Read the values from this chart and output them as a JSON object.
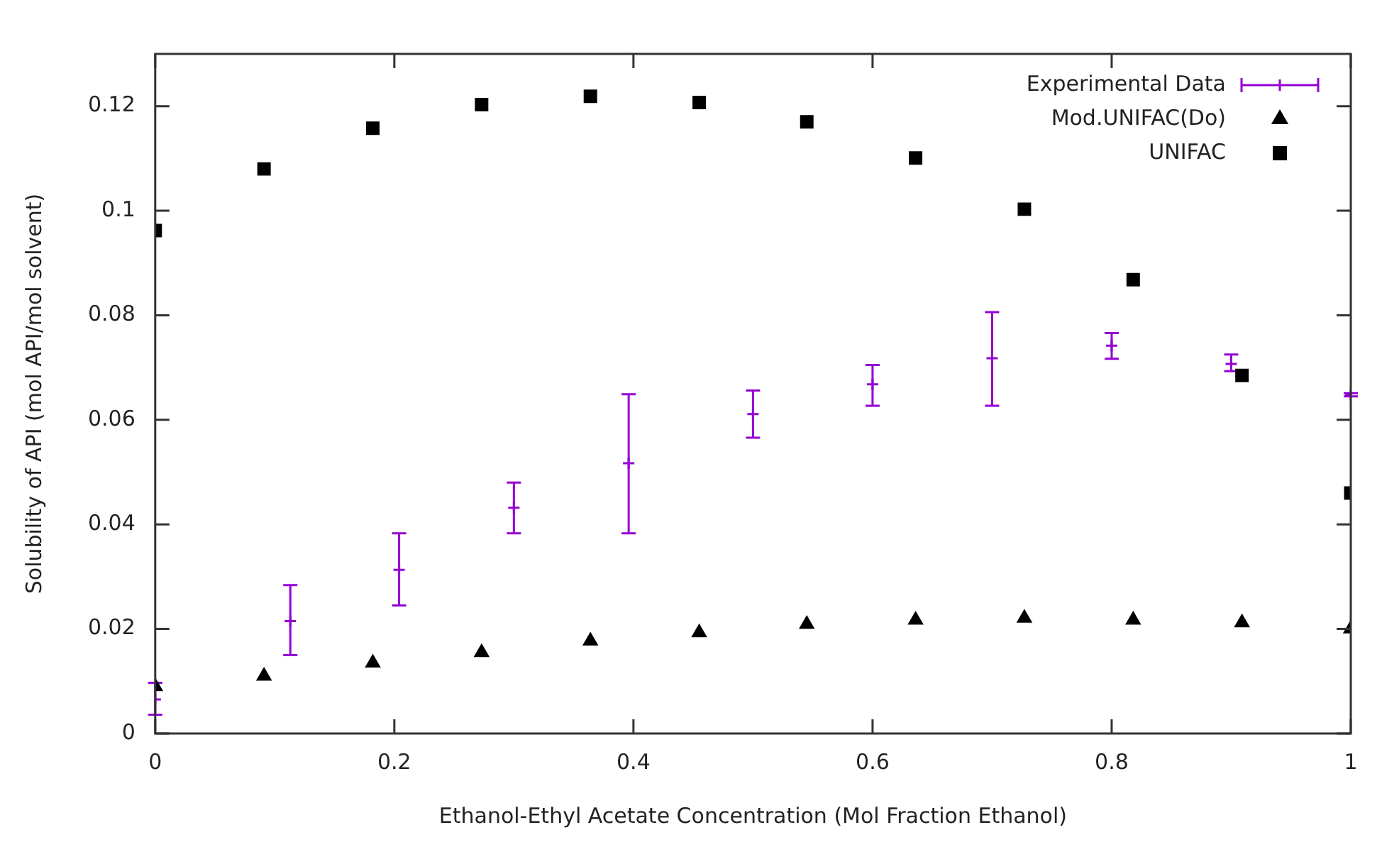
{
  "chart_data": {
    "type": "scatter",
    "xlabel": "Ethanol-Ethyl Acetate Concentration (Mol Fraction Ethanol)",
    "ylabel": "Solubility of API (mol API/mol solvent)",
    "xlim": [
      0,
      1
    ],
    "ylim": [
      0,
      0.13
    ],
    "xticks": [
      0,
      0.2,
      0.4,
      0.6,
      0.8,
      1
    ],
    "yticks": [
      0,
      0.02,
      0.04,
      0.06,
      0.08,
      0.1,
      0.12
    ],
    "grid": false,
    "legend": "top right",
    "series": [
      {
        "name": "Experimental Data",
        "color": "#9400d3",
        "marker": "cross",
        "x": [
          0,
          0.113,
          0.204,
          0.3,
          0.396,
          0.5,
          0.6,
          0.7,
          0.8,
          0.9,
          1
        ],
        "values": [
          0.0065,
          0.0215,
          0.0313,
          0.0432,
          0.0517,
          0.0611,
          0.0668,
          0.0718,
          0.0742,
          0.0707,
          0.0648
        ],
        "errors": [
          [
            0.0036,
            0.0097
          ],
          [
            0.015,
            0.0284
          ],
          [
            0.0245,
            0.0383
          ],
          [
            0.0383,
            0.048
          ],
          [
            0.0383,
            0.0649
          ],
          [
            0.0566,
            0.0656
          ],
          [
            0.0627,
            0.0705
          ],
          [
            0.0627,
            0.0806
          ],
          [
            0.0717,
            0.0766
          ],
          [
            0.0693,
            0.0725
          ],
          [
            0.0645,
            0.0651
          ]
        ]
      },
      {
        "name": "Mod.UNIFAC(Do)",
        "color": "#000000",
        "marker": "triangle",
        "x": [
          0,
          0.091,
          0.182,
          0.273,
          0.364,
          0.455,
          0.545,
          0.636,
          0.727,
          0.818,
          0.909,
          1
        ],
        "values": [
          0.009,
          0.011,
          0.0135,
          0.0155,
          0.0177,
          0.0193,
          0.0209,
          0.0217,
          0.0221,
          0.0217,
          0.0212,
          0.02
        ]
      },
      {
        "name": "UNIFAC",
        "color": "#000000",
        "marker": "square",
        "x": [
          0,
          0.091,
          0.182,
          0.273,
          0.364,
          0.455,
          0.545,
          0.636,
          0.727,
          0.818,
          0.909,
          1
        ],
        "values": [
          0.0962,
          0.108,
          0.1158,
          0.1203,
          0.1219,
          0.1207,
          0.117,
          0.1101,
          0.1003,
          0.0868,
          0.0685,
          0.046
        ]
      }
    ]
  }
}
